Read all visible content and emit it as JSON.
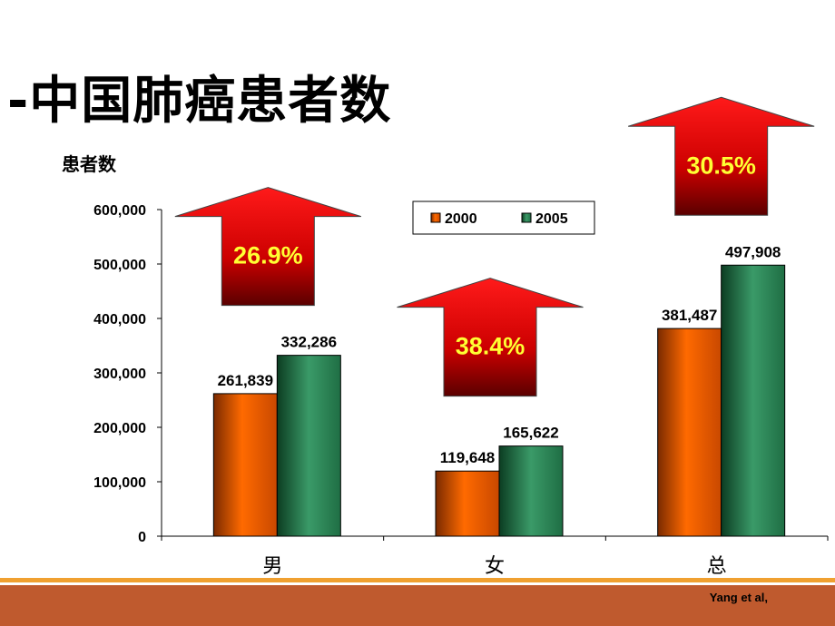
{
  "title": "-中国肺癌患者数",
  "credit": "Yang et al,",
  "colors": {
    "series_2000": "#ff6600",
    "series_2005": "#2e8b57",
    "arrow": "#cc0000",
    "percent_text": "#ffff33",
    "footer": "#bf5a2e",
    "footer_line": "#f0a030"
  },
  "chart_data": {
    "type": "bar",
    "ylabel": "患者数",
    "xlabel": "",
    "ylim": [
      0,
      600000
    ],
    "yticks": [
      0,
      100000,
      200000,
      300000,
      400000,
      500000,
      600000
    ],
    "ytick_labels": [
      "0",
      "100,000",
      "200,000",
      "300,000",
      "400,000",
      "500,000",
      "600,000"
    ],
    "categories": [
      "男",
      "女",
      "总"
    ],
    "series": [
      {
        "name": "2000",
        "values": [
          261839,
          119648,
          381487
        ],
        "labels": [
          "261,839",
          "119,648",
          "381,487"
        ]
      },
      {
        "name": "2005",
        "values": [
          332286,
          165622,
          497908
        ],
        "labels": [
          "332,286",
          "165,622",
          "497,908"
        ]
      }
    ],
    "legend": "top-center",
    "grid": false,
    "annotations": [
      {
        "category": "男",
        "text": "26.9%"
      },
      {
        "category": "女",
        "text": "38.4%"
      },
      {
        "category": "总",
        "text": "30.5%"
      }
    ]
  }
}
